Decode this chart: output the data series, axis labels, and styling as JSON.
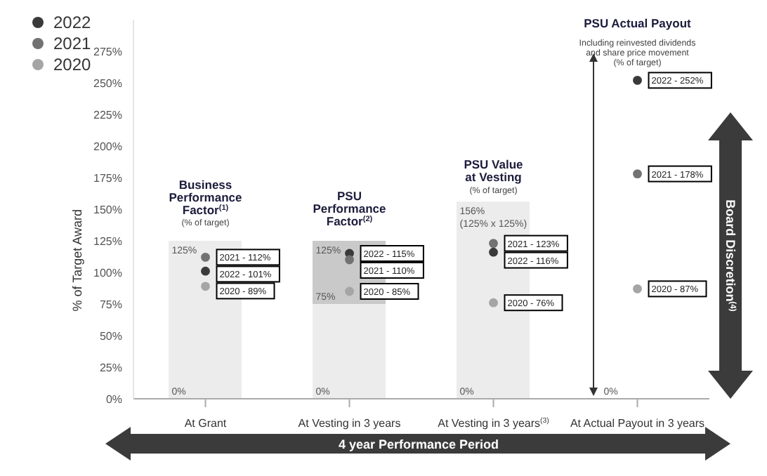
{
  "chart_data": {
    "type": "scatter",
    "categories": [
      "At Grant",
      "At Vesting in 3 years",
      "At Vesting in 3 years$^{(3)}$",
      "At Actual Payout in 3 years"
    ],
    "stacked": true,
    "series": [
      {
        "type": "bar",
        "color": "#ececec",
        "values": [
          125,
          75,
          156,
          null
        ]
      },
      {
        "type": "bar",
        "color": "#c9c9c9",
        "values": [
          null,
          50,
          null,
          null
        ]
      },
      {
        "name": "2022",
        "color": "#3a3a3a",
        "values": [
          101,
          115,
          116,
          252
        ],
        "value_labels": [
          "2022 - 101%",
          "2022 - 115%",
          "2022 - 116%",
          "2022 - 252%"
        ]
      },
      {
        "name": "2021",
        "color": "#727272",
        "values": [
          112,
          110,
          123,
          178
        ],
        "value_labels": [
          "2021 - 112%",
          "2021 - 110%",
          "2021 - 123%",
          "2021 - 178%"
        ]
      },
      {
        "name": "2020",
        "color": "#a5a5a5",
        "values": [
          89,
          85,
          76,
          87
        ],
        "value_labels": [
          "2020 - 89%",
          "2020 - 85%",
          "2020 - 76%",
          "2020 - 87%"
        ]
      }
    ],
    "ylabel": "% of Target Award",
    "ylim": [
      0,
      300
    ],
    "yticks": [
      {
        "value": 0,
        "label": "0%"
      },
      {
        "value": 25,
        "label": "25%"
      },
      {
        "value": 50,
        "label": "50%"
      },
      {
        "value": 75,
        "label": "75%"
      },
      {
        "value": 100,
        "label": "100%"
      },
      {
        "value": 125,
        "label": "125%"
      },
      {
        "value": 150,
        "label": "150%"
      },
      {
        "value": 175,
        "label": "175%"
      },
      {
        "value": 200,
        "label": "200%"
      },
      {
        "value": 225,
        "label": "225%"
      },
      {
        "value": 250,
        "label": "250%"
      },
      {
        "value": 275,
        "label": "275%"
      }
    ],
    "annotations": [
      "Business\nPerformance\nFactor$^{(1)}$",
      "(% of target)",
      "PSU\nPerformance\nFactor$^{(2)}$",
      "PSU Value\nat Vesting",
      "(% of target)",
      "PSU Actual Payout",
      "Including reinvested dividends\nand share price movement\n(% of target)",
      "125%",
      "0%",
      "125%",
      "75%",
      "0%",
      "156%\n(125% x 125%)",
      "0%",
      "0%",
      "Board Discretion$^{(4)}$",
      "4 year Performance Period"
    ],
    "legend": "top left",
    "marker": "circle"
  }
}
